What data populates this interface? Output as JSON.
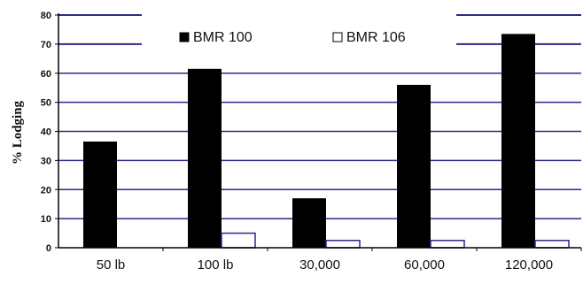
{
  "chart_data": {
    "type": "bar",
    "title": "",
    "xlabel": "",
    "ylabel": "% Lodging",
    "ylim": [
      0,
      80
    ],
    "yticks": [
      "0",
      "10",
      "20",
      "30",
      "40",
      "50",
      "60",
      "70",
      "80"
    ],
    "grid": true,
    "legend_position": "top-center",
    "categories": [
      "50 lb",
      "100 lb",
      "30,000",
      "60,000",
      "120,000"
    ],
    "series": [
      {
        "name": "BMR 100",
        "values": [
          36.5,
          61.5,
          17,
          56,
          73.5
        ],
        "color": "#000000"
      },
      {
        "name": "BMR 106",
        "values": [
          0,
          5,
          2.5,
          2.5,
          2.5
        ],
        "color": "#ffffff"
      }
    ],
    "colors": {
      "grid": "#2a2a8a",
      "axis": "#000000"
    }
  }
}
